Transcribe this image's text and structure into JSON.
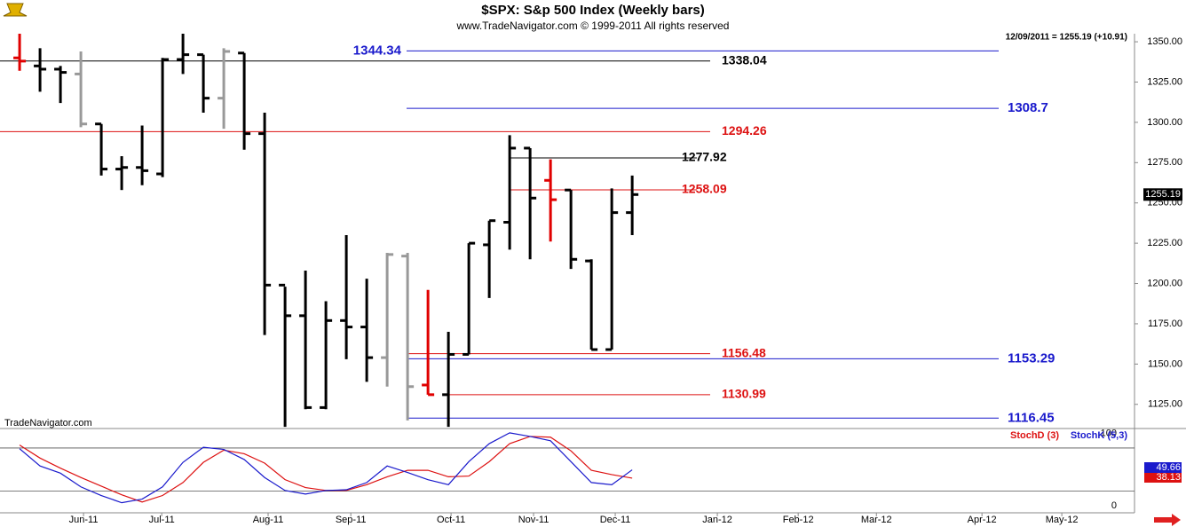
{
  "chart_data": [
    {
      "type": "ohlc",
      "title": "$SPX:  S&p 500 Index  (Weekly bars)",
      "subtitle": "www.TradeNavigator.com © 1999-2011 All rights reserved",
      "quote": "12/09/2011 = 1255.19 (+10.91)",
      "watermark": "TradeNavigator.com",
      "xlim": [
        -0.96,
        54.6
      ],
      "ylim": [
        1110,
        1355
      ],
      "yticks": [
        {
          "value": 1125,
          "label": "1125.00"
        },
        {
          "value": 1150,
          "label": "1150.00"
        },
        {
          "value": 1175,
          "label": "1175.00"
        },
        {
          "value": 1200,
          "label": "1200.00"
        },
        {
          "value": 1225,
          "label": "1225.00"
        },
        {
          "value": 1250,
          "label": "1250.00"
        },
        {
          "value": 1275,
          "label": "1275.00"
        },
        {
          "value": 1300,
          "label": "1300.00"
        },
        {
          "value": 1325,
          "label": "1325.00"
        },
        {
          "value": 1350,
          "label": "1350.00"
        }
      ],
      "open": [
        1340,
        1335,
        1333,
        1330,
        1299,
        1271,
        1272,
        1268,
        1339,
        1342,
        1315,
        1343,
        1293,
        1199,
        1180,
        1123,
        1177,
        1173,
        1154,
        1217,
        1137,
        1131,
        1156,
        1224,
        1238,
        1284,
        1264,
        1258,
        1214,
        1159,
        1244
      ],
      "high": [
        1355,
        1346,
        1335,
        1344,
        1299,
        1279,
        1298,
        1340,
        1355,
        1342,
        1346,
        1343,
        1306,
        1198,
        1208,
        1189,
        1230,
        1203,
        1219,
        1219,
        1196,
        1170,
        1225,
        1239,
        1292,
        1284,
        1277,
        1258,
        1215,
        1259,
        1267
      ],
      "low": [
        1332,
        1319,
        1312,
        1297,
        1267,
        1258,
        1261,
        1266,
        1330,
        1306,
        1296,
        1283,
        1168,
        1111,
        1122,
        1122,
        1153,
        1139,
        1136,
        1115,
        1131,
        1111,
        1156,
        1191,
        1221,
        1215,
        1226,
        1209,
        1159,
        1159,
        1230
      ],
      "close": [
        1338,
        1333,
        1331,
        1299,
        1271,
        1272,
        1270,
        1339,
        1342,
        1315,
        1344,
        1293,
        1199,
        1180,
        1123,
        1177,
        1173,
        1154,
        1218,
        1136,
        1131,
        1156,
        1225,
        1239,
        1284,
        1253,
        1252,
        1215,
        1159,
        1244,
        1255.19
      ],
      "bar_colors": [
        "#e00000",
        "#000000",
        "#000000",
        "#999999",
        "#000000",
        "#000000",
        "#000000",
        "#000000",
        "#000000",
        "#000000",
        "#999999",
        "#000000",
        "#000000",
        "#000000",
        "#000000",
        "#000000",
        "#000000",
        "#000000",
        "#999999",
        "#999999",
        "#e00000",
        "#000000",
        "#000000",
        "#000000",
        "#000000",
        "#000000",
        "#e00000",
        "#000000",
        "#000000",
        "#000000",
        "#000000"
      ],
      "levels": [
        {
          "value": 1344.34,
          "color": "#1a1acc"
        },
        {
          "value": 1308.7,
          "color": "#1a1acc"
        },
        {
          "value": 1153.29,
          "color": "#1a1acc"
        },
        {
          "value": 1116.45,
          "color": "#1a1acc"
        },
        {
          "value": 1338.04,
          "color": "#000000"
        },
        {
          "value": 1277.92,
          "color": "#000000"
        },
        {
          "value": 1294.26,
          "color": "#dd1111"
        },
        {
          "value": 1258.09,
          "color": "#dd1111"
        },
        {
          "value": 1156.48,
          "color": "#dd1111"
        },
        {
          "value": 1130.99,
          "color": "#dd1111"
        }
      ]
    },
    {
      "type": "line",
      "xlim": [
        -0.96,
        54.6
      ],
      "ylim": [
        -10,
        107
      ],
      "yticks": [
        0,
        100
      ],
      "hlines": [
        80,
        20
      ],
      "xticks": [
        {
          "value": 3.13,
          "label": "Jun-11"
        },
        {
          "value": 6.96,
          "label": "Jul-11"
        },
        {
          "value": 12.17,
          "label": "Aug-11"
        },
        {
          "value": 16.22,
          "label": "Sep-11"
        },
        {
          "value": 21.13,
          "label": "Oct-11"
        },
        {
          "value": 25.17,
          "label": "Nov-11"
        },
        {
          "value": 29.17,
          "label": "Dec-11"
        },
        {
          "value": 34.17,
          "label": "Jan-12"
        },
        {
          "value": 38.13,
          "label": "Feb-12"
        },
        {
          "value": 41.96,
          "label": "Mar-12"
        },
        {
          "value": 47.13,
          "label": "Apr-12"
        },
        {
          "value": 51.04,
          "label": "May-12"
        }
      ],
      "series": [
        {
          "name": "StochD (3)",
          "color": "#dd1111",
          "values": [
            84,
            66,
            52,
            39,
            27,
            15,
            5,
            14,
            32,
            60,
            77,
            72,
            59,
            36,
            25,
            21,
            21,
            29,
            40,
            49,
            49,
            40,
            41,
            61,
            86,
            96,
            95,
            76,
            49,
            43,
            38.13
          ]
        },
        {
          "name": "StochK (5,3)",
          "color": "#1a1acc",
          "values": [
            79,
            55,
            45,
            26,
            14,
            4,
            9,
            26,
            60,
            81,
            78,
            64,
            39,
            21,
            16,
            21,
            22,
            32,
            55,
            46,
            36,
            29,
            61,
            86,
            101,
            96,
            90,
            61,
            32,
            29,
            49.66
          ]
        }
      ]
    }
  ]
}
